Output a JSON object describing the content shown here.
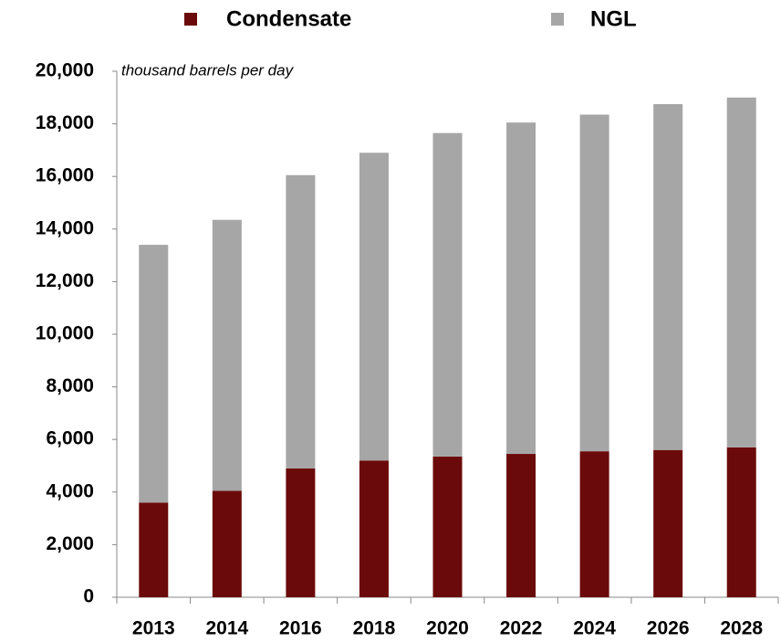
{
  "chart_data": {
    "type": "stacked_bar",
    "ylabel": "thousand barrels per day",
    "categories": [
      "2013",
      "2014",
      "2016",
      "2018",
      "2020",
      "2022",
      "2024",
      "2026",
      "2028"
    ],
    "series": [
      {
        "name": "Condensate",
        "color": "#6b0a0a",
        "values": [
          3600,
          4050,
          4900,
          5200,
          5350,
          5450,
          5550,
          5600,
          5700
        ]
      },
      {
        "name": "NGL",
        "color": "#a6a6a6",
        "values": [
          9800,
          10300,
          11150,
          11700,
          12300,
          12600,
          12800,
          13150,
          13300
        ]
      }
    ],
    "ylim": [
      0,
      20000
    ],
    "yticks": [
      0,
      {
        "value": 2000,
        "label": "2,000"
      },
      {
        "value": 4000,
        "label": "4,000"
      },
      {
        "value": 6000,
        "label": "6,000"
      },
      {
        "value": 8000,
        "label": "8,000"
      },
      {
        "value": 10000,
        "label": "10,000"
      },
      {
        "value": 12000,
        "label": "12,000"
      },
      {
        "value": 14000,
        "label": "14,000"
      },
      {
        "value": 16000,
        "label": "16,000"
      },
      {
        "value": 18000,
        "label": "18,000"
      },
      {
        "value": 20000,
        "label": "20,000"
      }
    ],
    "grid": false,
    "legend": "top"
  }
}
